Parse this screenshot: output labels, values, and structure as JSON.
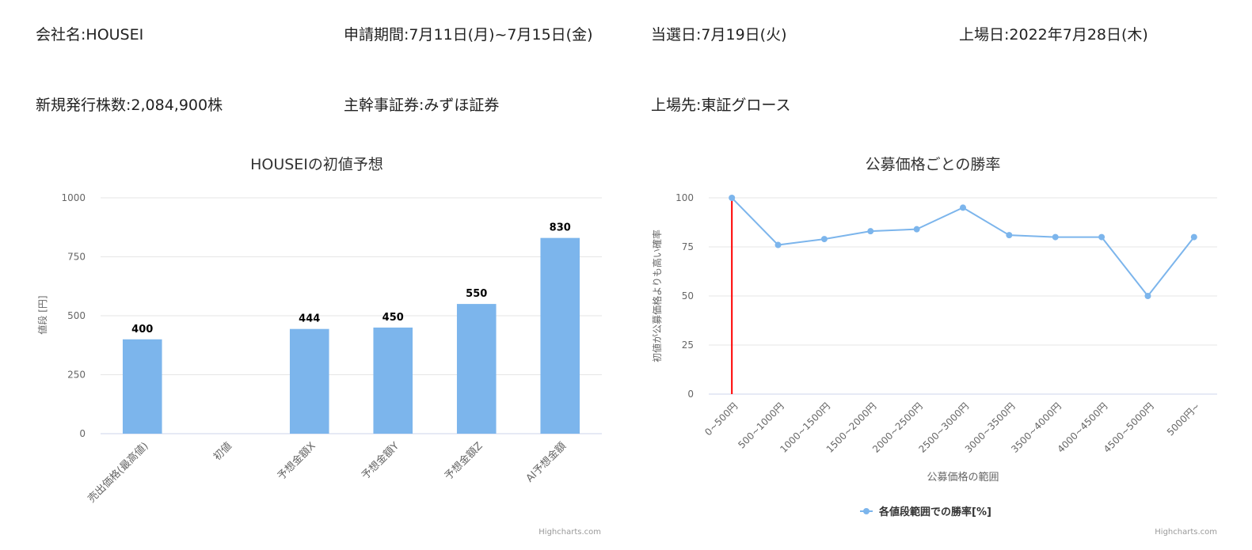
{
  "info": {
    "company": "会社名:HOUSEI",
    "period": "申請期間:7月11日(月)~7月15日(金)",
    "win_date": "当選日:7月19日(火)",
    "listing_date": "上場日:2022年7月28日(木)",
    "new_shares": "新規発行株数:2,084,900株",
    "lead_underwriter": "主幹事証券:みずほ証券",
    "market": "上場先:東証グロース"
  },
  "credits": {
    "left": "Highcharts.com",
    "right": "Highcharts.com"
  },
  "chart_data": [
    {
      "type": "bar",
      "title": "HOUSEIの初値予想",
      "ylabel": "値段 [円]",
      "xlabel": "",
      "ylim": [
        0,
        1000
      ],
      "yticks": [
        0,
        250,
        500,
        750,
        1000
      ],
      "categories": [
        "売出価格(最高値)",
        "初値",
        "予想金額X",
        "予想金額Y",
        "予想金額Z",
        "AI予想金額"
      ],
      "values": [
        400,
        null,
        444,
        450,
        550,
        830
      ],
      "color": "#7cb5ec",
      "data_labels": true,
      "grid": true
    },
    {
      "type": "line",
      "title": "公募価格ごとの勝率",
      "ylabel": "初値が公募価格よりも高い確率",
      "xlabel": "公募価格の範囲",
      "ylim": [
        0,
        100
      ],
      "yticks": [
        0,
        25,
        50,
        75,
        100
      ],
      "categories": [
        "0~500円",
        "500~1000円",
        "1000~1500円",
        "1500~2000円",
        "2000~2500円",
        "2500~3000円",
        "3000~3500円",
        "3500~4000円",
        "4000~4500円",
        "4500~5000円",
        "5000円~"
      ],
      "series": [
        {
          "name": "各値段範囲での勝率[%]",
          "values": [
            100,
            76,
            79,
            83,
            84,
            95,
            81,
            80,
            80,
            50,
            80
          ],
          "color": "#7cb5ec"
        }
      ],
      "highlight_category": "0~500円",
      "highlight_color": "#ff0000",
      "legend": "bottom-center",
      "grid": true
    }
  ]
}
